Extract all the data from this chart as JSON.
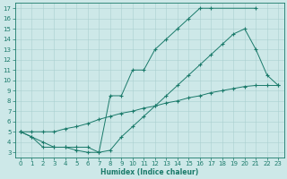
{
  "xlabel": "Humidex (Indice chaleur)",
  "xlim": [
    -0.5,
    23.5
  ],
  "ylim": [
    2.5,
    17.5
  ],
  "xticks": [
    0,
    1,
    2,
    3,
    4,
    5,
    6,
    7,
    8,
    9,
    10,
    11,
    12,
    13,
    14,
    15,
    16,
    17,
    18,
    19,
    20,
    21,
    22,
    23
  ],
  "yticks": [
    3,
    4,
    5,
    6,
    7,
    8,
    9,
    10,
    11,
    12,
    13,
    14,
    15,
    16,
    17
  ],
  "bg_color": "#cde8e8",
  "line_color": "#1a7a6a",
  "grid_color": "#aacfcf",
  "line1_x": [
    0,
    1,
    2,
    3,
    4,
    5,
    6,
    7,
    8,
    9,
    10,
    11,
    12,
    13,
    14,
    15,
    16,
    17,
    21
  ],
  "line1_y": [
    5,
    4.5,
    3.5,
    3.5,
    3.5,
    3.5,
    3.5,
    3.0,
    8.5,
    8.5,
    11.0,
    11.0,
    13.0,
    14.0,
    15.0,
    16.0,
    17.0,
    17.0,
    17.0
  ],
  "line2_x": [
    0,
    1,
    2,
    3,
    4,
    5,
    6,
    7,
    8,
    9,
    10,
    11,
    12,
    13,
    14,
    15,
    16,
    17,
    18,
    19,
    20,
    21,
    22,
    23
  ],
  "line2_y": [
    5,
    4.5,
    4.0,
    3.5,
    3.5,
    3.2,
    3.0,
    3.0,
    3.2,
    4.5,
    5.5,
    6.5,
    7.5,
    8.5,
    9.5,
    10.5,
    11.5,
    12.5,
    13.5,
    14.5,
    15.0,
    13.0,
    10.5,
    9.5
  ],
  "line3_x": [
    0,
    1,
    2,
    3,
    4,
    5,
    6,
    7,
    8,
    9,
    10,
    11,
    12,
    13,
    14,
    15,
    16,
    17,
    18,
    19,
    20,
    21,
    22,
    23
  ],
  "line3_y": [
    5,
    5,
    5,
    5,
    5.3,
    5.5,
    5.8,
    6.2,
    6.5,
    6.8,
    7.0,
    7.3,
    7.5,
    7.8,
    8.0,
    8.3,
    8.5,
    8.8,
    9.0,
    9.2,
    9.4,
    9.5,
    9.5,
    9.5
  ],
  "figsize": [
    3.2,
    2.0
  ],
  "dpi": 100,
  "tick_fontsize": 5,
  "xlabel_fontsize": 5.5,
  "marker_size": 2,
  "line_width": 0.7
}
